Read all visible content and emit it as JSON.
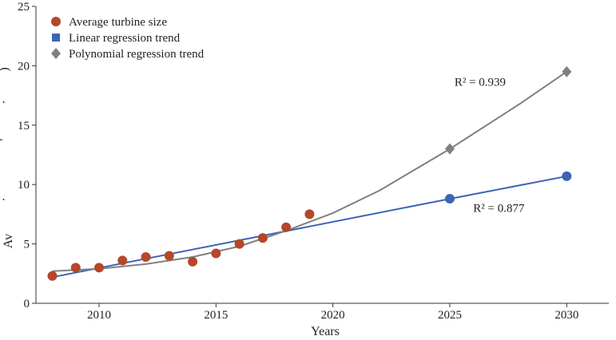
{
  "chart_data": {
    "type": "scatter",
    "xlabel": "Years",
    "ylabel": "Av",
    "ylabel_fragments": [
      ")",
      "·",
      "'",
      "·"
    ],
    "xlim": [
      2007.3,
      2031.8
    ],
    "ylim": [
      0,
      25
    ],
    "xticks": [
      2010,
      2015,
      2020,
      2025,
      2030
    ],
    "yticks": [
      0,
      5,
      10,
      15,
      20,
      25
    ],
    "grid": false,
    "legend_position": "top-left",
    "series": [
      {
        "name": "Average turbine size",
        "kind": "points",
        "marker": "circle",
        "color": "#b5472a",
        "x": [
          2008,
          2009,
          2010,
          2011,
          2012,
          2013,
          2014,
          2015,
          2016,
          2017,
          2018,
          2019
        ],
        "y": [
          2.3,
          3.0,
          3.0,
          3.6,
          3.9,
          4.0,
          3.5,
          4.2,
          5.0,
          5.5,
          6.4,
          7.5
        ]
      },
      {
        "name": "Linear regression trend",
        "kind": "line",
        "marker": "square",
        "color": "#3c64b4",
        "x": [
          2008,
          2025,
          2030
        ],
        "y": [
          2.2,
          8.8,
          10.7
        ],
        "highlight_markers": [
          {
            "x": 2025,
            "y": 8.8,
            "shape": "circle"
          },
          {
            "x": 2030,
            "y": 10.7,
            "shape": "circle"
          }
        ]
      },
      {
        "name": "Polynomial regression trend",
        "kind": "line",
        "marker": "diamond",
        "color": "#808080",
        "x": [
          2008,
          2010,
          2012,
          2014,
          2016,
          2018,
          2020,
          2022,
          2025,
          2028,
          2030
        ],
        "y": [
          2.7,
          2.9,
          3.3,
          3.9,
          4.8,
          6.1,
          7.6,
          9.5,
          13.0,
          16.8,
          19.5
        ],
        "highlight_markers": [
          {
            "x": 2025,
            "y": 13.0,
            "shape": "diamond"
          },
          {
            "x": 2030,
            "y": 19.5,
            "shape": "diamond"
          }
        ]
      }
    ],
    "annotations": [
      {
        "text": "R² = 0.939",
        "x": 2025.2,
        "y": 18.3
      },
      {
        "text": "R² = 0.877",
        "x": 2026.0,
        "y": 7.7
      }
    ]
  }
}
